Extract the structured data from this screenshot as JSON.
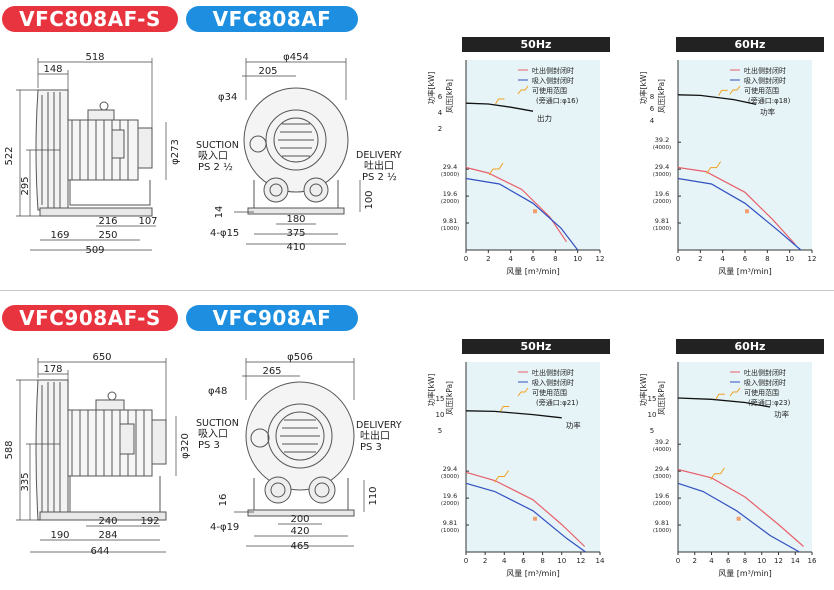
{
  "sections": [
    {
      "models": [
        "VFC808AF-S",
        "VFC808AF"
      ],
      "side_view": {
        "dims": [
          "518",
          "148",
          "522",
          "295",
          "216",
          "107",
          "169",
          "250",
          "509"
        ],
        "shaft_dia": "φ273"
      },
      "front_view": {
        "dims": [
          "φ454",
          "205",
          "φ34",
          "14",
          "4-φ15",
          "180",
          "375",
          "410",
          "100"
        ],
        "suction": [
          "SUCTION",
          "吸入口",
          "PS 2 ½"
        ],
        "delivery": [
          "DELIVERY",
          "吐出口",
          "PS 2 ½"
        ]
      },
      "charts": [
        {
          "freq": "50Hz",
          "power_ticks": [
            "6",
            "4",
            "2"
          ],
          "pressure_ticks": [
            [
              "29.4",
              "(3000)"
            ],
            [
              "19.6",
              "(2000)"
            ],
            [
              "9.81",
              "(1000)"
            ]
          ],
          "x_ticks": [
            "0",
            "2",
            "4",
            "6",
            "8",
            "10",
            "12"
          ],
          "power_label": "出力",
          "range_note": "(旁通口:φ16)"
        },
        {
          "freq": "60Hz",
          "power_ticks": [
            "8",
            "6",
            "4"
          ],
          "pressure_ticks": [
            [
              "39.2",
              "(4000)"
            ],
            [
              "29.4",
              "(3000)"
            ],
            [
              "19.6",
              "(2000)"
            ],
            [
              "9.81",
              "(1000)"
            ]
          ],
          "x_ticks": [
            "0",
            "2",
            "4",
            "6",
            "8",
            "10",
            "12"
          ],
          "power_label": "功率",
          "range_note": "(旁通口:φ18)"
        }
      ]
    },
    {
      "models": [
        "VFC908AF-S",
        "VFC908AF"
      ],
      "side_view": {
        "dims": [
          "650",
          "178",
          "588",
          "335",
          "240",
          "192",
          "190",
          "284",
          "644"
        ],
        "shaft_dia": "φ320"
      },
      "front_view": {
        "dims": [
          "φ506",
          "265",
          "φ48",
          "16",
          "4-φ19",
          "200",
          "420",
          "465",
          "110"
        ],
        "suction": [
          "SUCTION",
          "吸入口",
          "PS 3"
        ],
        "delivery": [
          "DELIVERY",
          "吐出口",
          "PS 3"
        ]
      },
      "charts": [
        {
          "freq": "50Hz",
          "power_ticks": [
            "15",
            "10",
            "5"
          ],
          "pressure_ticks": [
            [
              "29.4",
              "(3000)"
            ],
            [
              "19.6",
              "(2000)"
            ],
            [
              "9.81",
              "(1000)"
            ]
          ],
          "x_ticks": [
            "0",
            "2",
            "4",
            "6",
            "8",
            "10",
            "12",
            "14"
          ],
          "power_label": "功率",
          "range_note": "(旁通口:φ21)"
        },
        {
          "freq": "60Hz",
          "power_ticks": [
            "15",
            "10",
            "5"
          ],
          "pressure_ticks": [
            [
              "39.2",
              "(4000)"
            ],
            [
              "29.4",
              "(3000)"
            ],
            [
              "19.6",
              "(2000)"
            ],
            [
              "9.81",
              "(1000)"
            ]
          ],
          "x_ticks": [
            "0",
            "2",
            "4",
            "6",
            "8",
            "10",
            "12",
            "14",
            "16"
          ],
          "power_label": "功率",
          "range_note": "(旁通口:φ23)"
        }
      ]
    }
  ],
  "chart_common": {
    "y_power_label": "功率[kW]",
    "y_pressure_label": "风压[kPa]",
    "x_label": "风量 [m³/min]",
    "legend": [
      "吐出侧封闭时",
      "吸入侧封闭时",
      "可使用范围"
    ]
  },
  "colors": {
    "badge_red": "#e8343e",
    "badge_blue": "#1e8fe0",
    "chart_bg": "#e6f4f8",
    "blow_curve": "#e8606a",
    "suck_curve": "#3050c0",
    "power_curve": "#111111",
    "range_mark": "#f0a020"
  }
}
